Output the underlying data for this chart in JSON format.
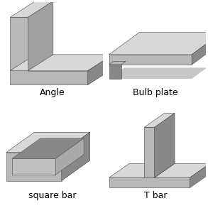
{
  "background_color": "#ffffff",
  "labels": {
    "angle": "Angle",
    "bulb_plate": "Bulb plate",
    "square_bar": "square bar",
    "t_bar": "T bar"
  },
  "label_fontsize": 9,
  "steel_colors": {
    "light": "#d8d8d8",
    "mid": "#b8b8b8",
    "dark": "#888888",
    "darker": "#686868",
    "edge": "#444444"
  }
}
